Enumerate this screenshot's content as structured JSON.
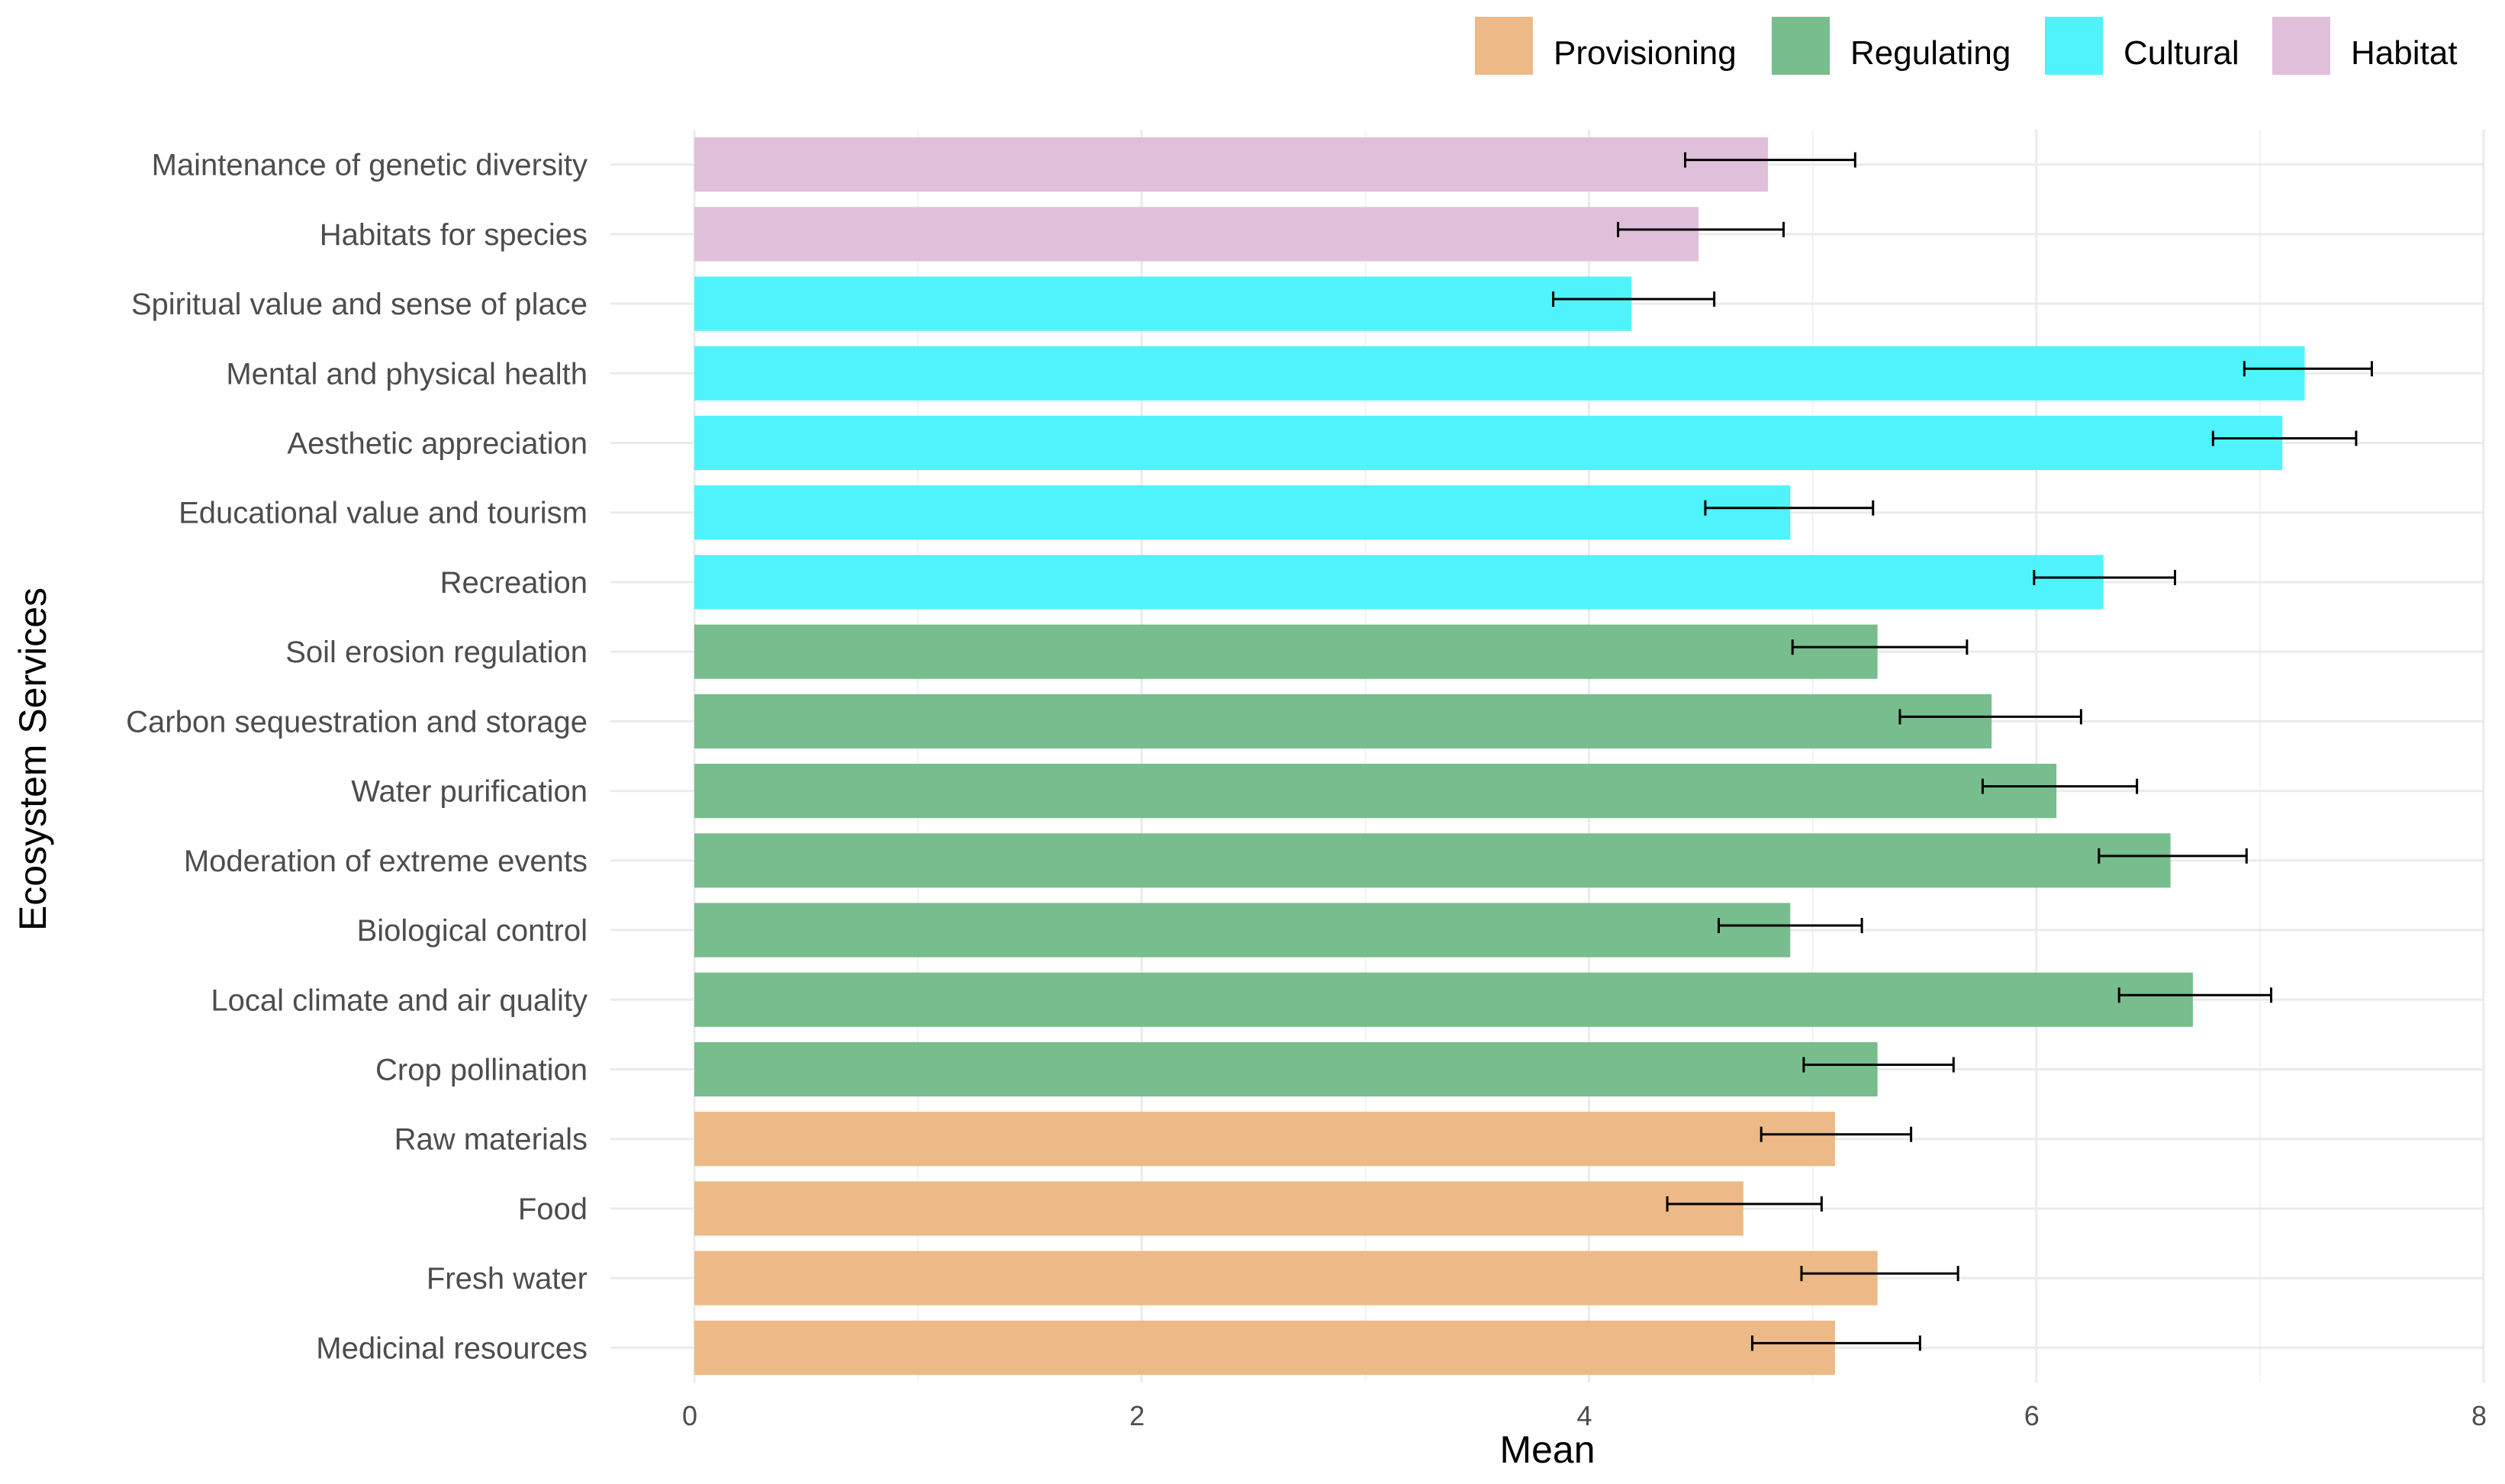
{
  "chart_data": {
    "type": "bar",
    "orientation": "horizontal",
    "title": "",
    "xlabel": "Mean",
    "ylabel": "Ecosystem Services",
    "xlim": [
      0,
      8
    ],
    "xticks": [
      "0",
      "2",
      "4",
      "6",
      "8"
    ],
    "grid": true,
    "legend_position": "top-right",
    "legend": [
      {
        "name": "Provisioning",
        "color": "#EDB986"
      },
      {
        "name": "Regulating",
        "color": "#77BD8D"
      },
      {
        "name": "Cultural",
        "color": "#4FF3FB"
      },
      {
        "name": "Habitat",
        "color": "#E0BFDA"
      }
    ],
    "categories": [
      {
        "label": "Maintenance of genetic diversity",
        "group": "Habitat",
        "mean": 4.8,
        "err_low": 4.43,
        "err_high": 5.19
      },
      {
        "label": "Habitats for species",
        "group": "Habitat",
        "mean": 4.49,
        "err_low": 4.13,
        "err_high": 4.87
      },
      {
        "label": "Spiritual value and sense of place",
        "group": "Cultural",
        "mean": 4.19,
        "err_low": 3.84,
        "err_high": 4.56
      },
      {
        "label": "Mental and physical health",
        "group": "Cultural",
        "mean": 7.2,
        "err_low": 6.93,
        "err_high": 7.5
      },
      {
        "label": "Aesthetic appreciation",
        "group": "Cultural",
        "mean": 7.1,
        "err_low": 6.79,
        "err_high": 7.43
      },
      {
        "label": "Educational value and tourism",
        "group": "Cultural",
        "mean": 4.9,
        "err_low": 4.52,
        "err_high": 5.27
      },
      {
        "label": "Recreation",
        "group": "Cultural",
        "mean": 6.3,
        "err_low": 5.99,
        "err_high": 6.62
      },
      {
        "label": "Soil erosion regulation",
        "group": "Regulating",
        "mean": 5.29,
        "err_low": 4.91,
        "err_high": 5.69
      },
      {
        "label": "Carbon sequestration and storage",
        "group": "Regulating",
        "mean": 5.8,
        "err_low": 5.39,
        "err_high": 6.2
      },
      {
        "label": "Water purification",
        "group": "Regulating",
        "mean": 6.09,
        "err_low": 5.76,
        "err_high": 6.45
      },
      {
        "label": "Moderation of extreme events",
        "group": "Regulating",
        "mean": 6.6,
        "err_low": 6.28,
        "err_high": 6.94
      },
      {
        "label": "Biological control",
        "group": "Regulating",
        "mean": 4.9,
        "err_low": 4.58,
        "err_high": 5.22
      },
      {
        "label": "Local climate and air quality",
        "group": "Regulating",
        "mean": 6.7,
        "err_low": 6.37,
        "err_high": 7.05
      },
      {
        "label": "Crop pollination",
        "group": "Regulating",
        "mean": 5.29,
        "err_low": 4.96,
        "err_high": 5.63
      },
      {
        "label": "Raw materials",
        "group": "Provisioning",
        "mean": 5.1,
        "err_low": 4.77,
        "err_high": 5.44
      },
      {
        "label": "Food",
        "group": "Provisioning",
        "mean": 4.69,
        "err_low": 4.35,
        "err_high": 5.04
      },
      {
        "label": "Fresh water",
        "group": "Provisioning",
        "mean": 5.29,
        "err_low": 4.95,
        "err_high": 5.65
      },
      {
        "label": "Medicinal resources",
        "group": "Provisioning",
        "mean": 5.1,
        "err_low": 4.73,
        "err_high": 5.48
      }
    ]
  }
}
